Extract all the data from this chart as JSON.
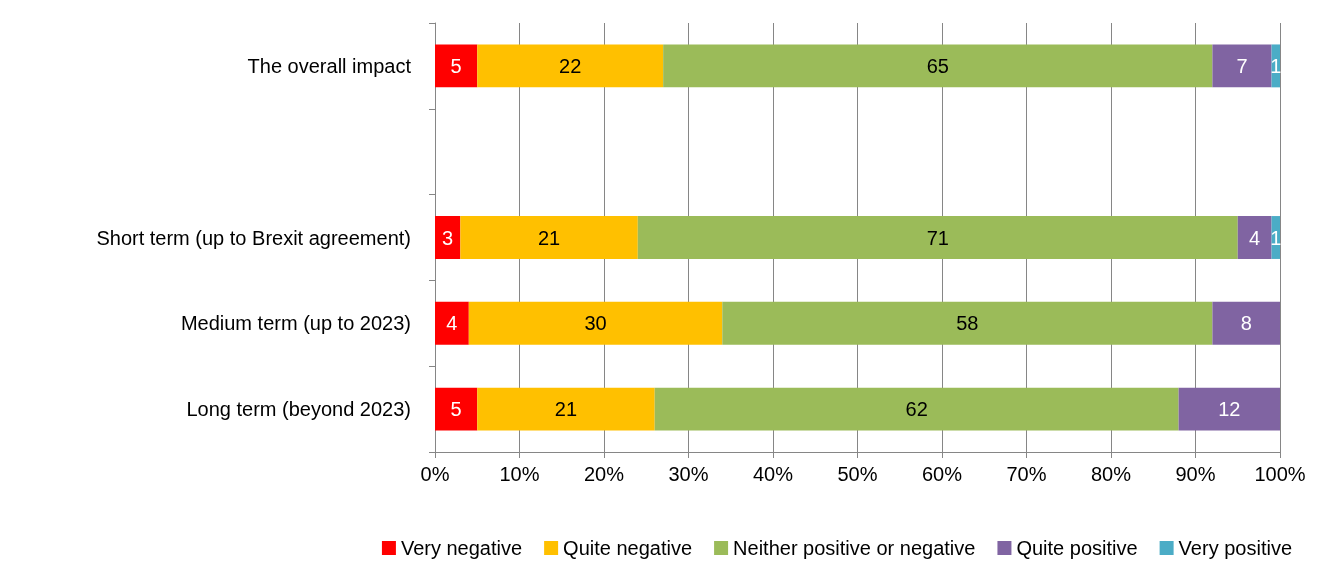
{
  "chart_data": {
    "type": "bar",
    "orientation": "horizontal",
    "stacked": true,
    "data_labels": true,
    "grid": "x",
    "legend": "bottom",
    "categories": [
      "The overall impact",
      null,
      "Short term (up to Brexit agreement)",
      "Medium term (up to 2023)",
      "Long term (beyond 2023)"
    ],
    "xlim": [
      0,
      100
    ],
    "xticks": [
      {
        "value": 0,
        "label": "0%"
      },
      {
        "value": 10,
        "label": "10%"
      },
      {
        "value": 20,
        "label": "20%"
      },
      {
        "value": 30,
        "label": "30%"
      },
      {
        "value": 40,
        "label": "40%"
      },
      {
        "value": 50,
        "label": "50%"
      },
      {
        "value": 60,
        "label": "60%"
      },
      {
        "value": 70,
        "label": "70%"
      },
      {
        "value": 80,
        "label": "80%"
      },
      {
        "value": 90,
        "label": "90%"
      },
      {
        "value": 100,
        "label": "100%"
      }
    ],
    "series": [
      {
        "name": "Very negative",
        "color": "#ff0000",
        "values": [
          5,
          null,
          3,
          4,
          5
        ]
      },
      {
        "name": "Quite negative",
        "color": "#ffc000",
        "values": [
          22,
          null,
          21,
          30,
          21
        ]
      },
      {
        "name": "Neither positive or negative",
        "color": "#9bbb59",
        "values": [
          65,
          null,
          71,
          58,
          62
        ]
      },
      {
        "name": "Quite positive",
        "color": "#8064a2",
        "values": [
          7,
          null,
          4,
          8,
          12
        ]
      },
      {
        "name": "Very positive",
        "color": "#4bacc6",
        "values": [
          1,
          null,
          1,
          null,
          null
        ]
      }
    ]
  }
}
